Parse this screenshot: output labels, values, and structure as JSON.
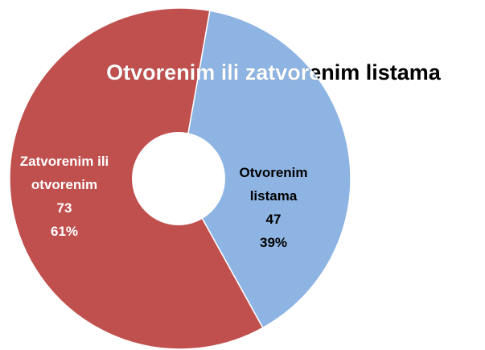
{
  "chart_data": {
    "type": "donut",
    "title": "Otvorenim ili zatvorenim listama",
    "categories": [
      "Otvorenim listama",
      "Zatvorenim ili otvorenim"
    ],
    "values": [
      47,
      73
    ],
    "percent_labels": [
      "39%",
      "61%"
    ],
    "colors": [
      "#8eb4e3",
      "#c0504d"
    ]
  }
}
